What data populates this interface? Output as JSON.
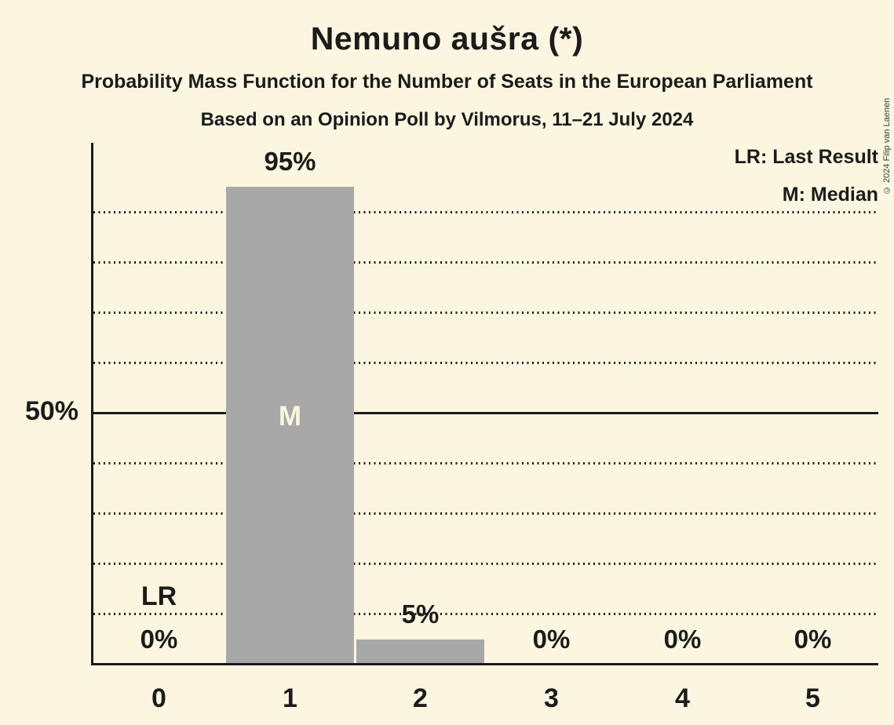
{
  "title": "Nemuno aušra (*)",
  "subtitle": "Probability Mass Function for the Number of Seats in the European Parliament",
  "poll_line": "Based on an Opinion Poll by Vilmorus, 11–21 July 2024",
  "copyright": "© 2024 Filip van Laenen",
  "legend": {
    "lr": "LR: Last Result",
    "m": "M: Median"
  },
  "y_axis": {
    "tick_label": "50%"
  },
  "annotations": {
    "last_result_label": "LR",
    "last_result_category": "0",
    "median_label": "M",
    "median_category": "1"
  },
  "colors": {
    "background": "#FBF6DF",
    "bar": "#A8A8A8",
    "ink": "#1B1B1B",
    "median_text": "#FBF6DF"
  },
  "chart_data": {
    "type": "bar",
    "title": "Nemuno aušra (*)",
    "xlabel": "",
    "ylabel": "",
    "categories": [
      "0",
      "1",
      "2",
      "3",
      "4",
      "5"
    ],
    "values": [
      0,
      95,
      5,
      0,
      0,
      0
    ],
    "value_labels": [
      "0%",
      "95%",
      "5%",
      "0%",
      "0%",
      "0%"
    ],
    "ylim": [
      0,
      103
    ],
    "y_tick_labels_shown": [
      "50%"
    ],
    "gridlines_percent_dotted": [
      10,
      20,
      30,
      40,
      60,
      70,
      80,
      90
    ],
    "gridlines_percent_solid": [
      50
    ],
    "legend_position": "top-right",
    "bar_color": "#A8A8A8",
    "annotations": [
      {
        "category": "0",
        "text": "LR"
      },
      {
        "category": "1",
        "text": "M"
      }
    ]
  }
}
